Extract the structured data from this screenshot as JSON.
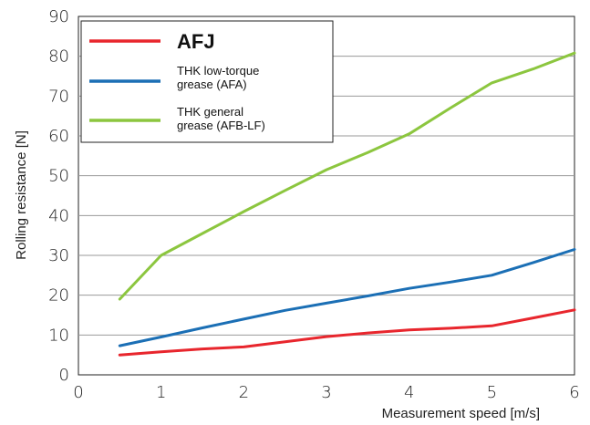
{
  "chart_data": {
    "type": "line",
    "title": "",
    "xlabel": "Measurement speed [m/s]",
    "ylabel": "Rolling resistance [N]",
    "xlim": [
      0,
      6
    ],
    "ylim": [
      0,
      90
    ],
    "xticks": [
      0,
      1,
      2,
      3,
      4,
      5,
      6
    ],
    "yticks": [
      0,
      10,
      20,
      30,
      40,
      50,
      60,
      70,
      80,
      90
    ],
    "grid": "horizontal",
    "legend_position": "top-left",
    "series": [
      {
        "name": "AFJ",
        "color": "#e8262d",
        "x": [
          0.5,
          1,
          1.5,
          2,
          2.5,
          3,
          3.5,
          4,
          4.5,
          5,
          5.5,
          6
        ],
        "y": [
          5,
          5.8,
          6.5,
          7,
          8.3,
          9.6,
          10.5,
          11.3,
          11.7,
          12.3,
          14.3,
          16.3
        ]
      },
      {
        "name": "THK low-torque\ngrease (AFA)",
        "color": "#1b6fb5",
        "x": [
          0.5,
          1,
          1.5,
          2,
          2.5,
          3,
          3.5,
          4,
          4.5,
          5,
          5.5,
          6
        ],
        "y": [
          7.3,
          9.5,
          11.8,
          14,
          16.2,
          18,
          19.8,
          21.7,
          23.3,
          25,
          28.2,
          31.5
        ]
      },
      {
        "name": "THK general\ngrease (AFB-LF)",
        "color": "#8cc63f",
        "x": [
          0.5,
          1,
          1.5,
          2,
          2.5,
          3,
          3.5,
          4,
          4.5,
          5,
          5.5,
          6
        ],
        "y": [
          19,
          30,
          35.5,
          41,
          46.3,
          51.5,
          55.8,
          60.5,
          67,
          73.3,
          76.8,
          80.8
        ]
      }
    ]
  }
}
